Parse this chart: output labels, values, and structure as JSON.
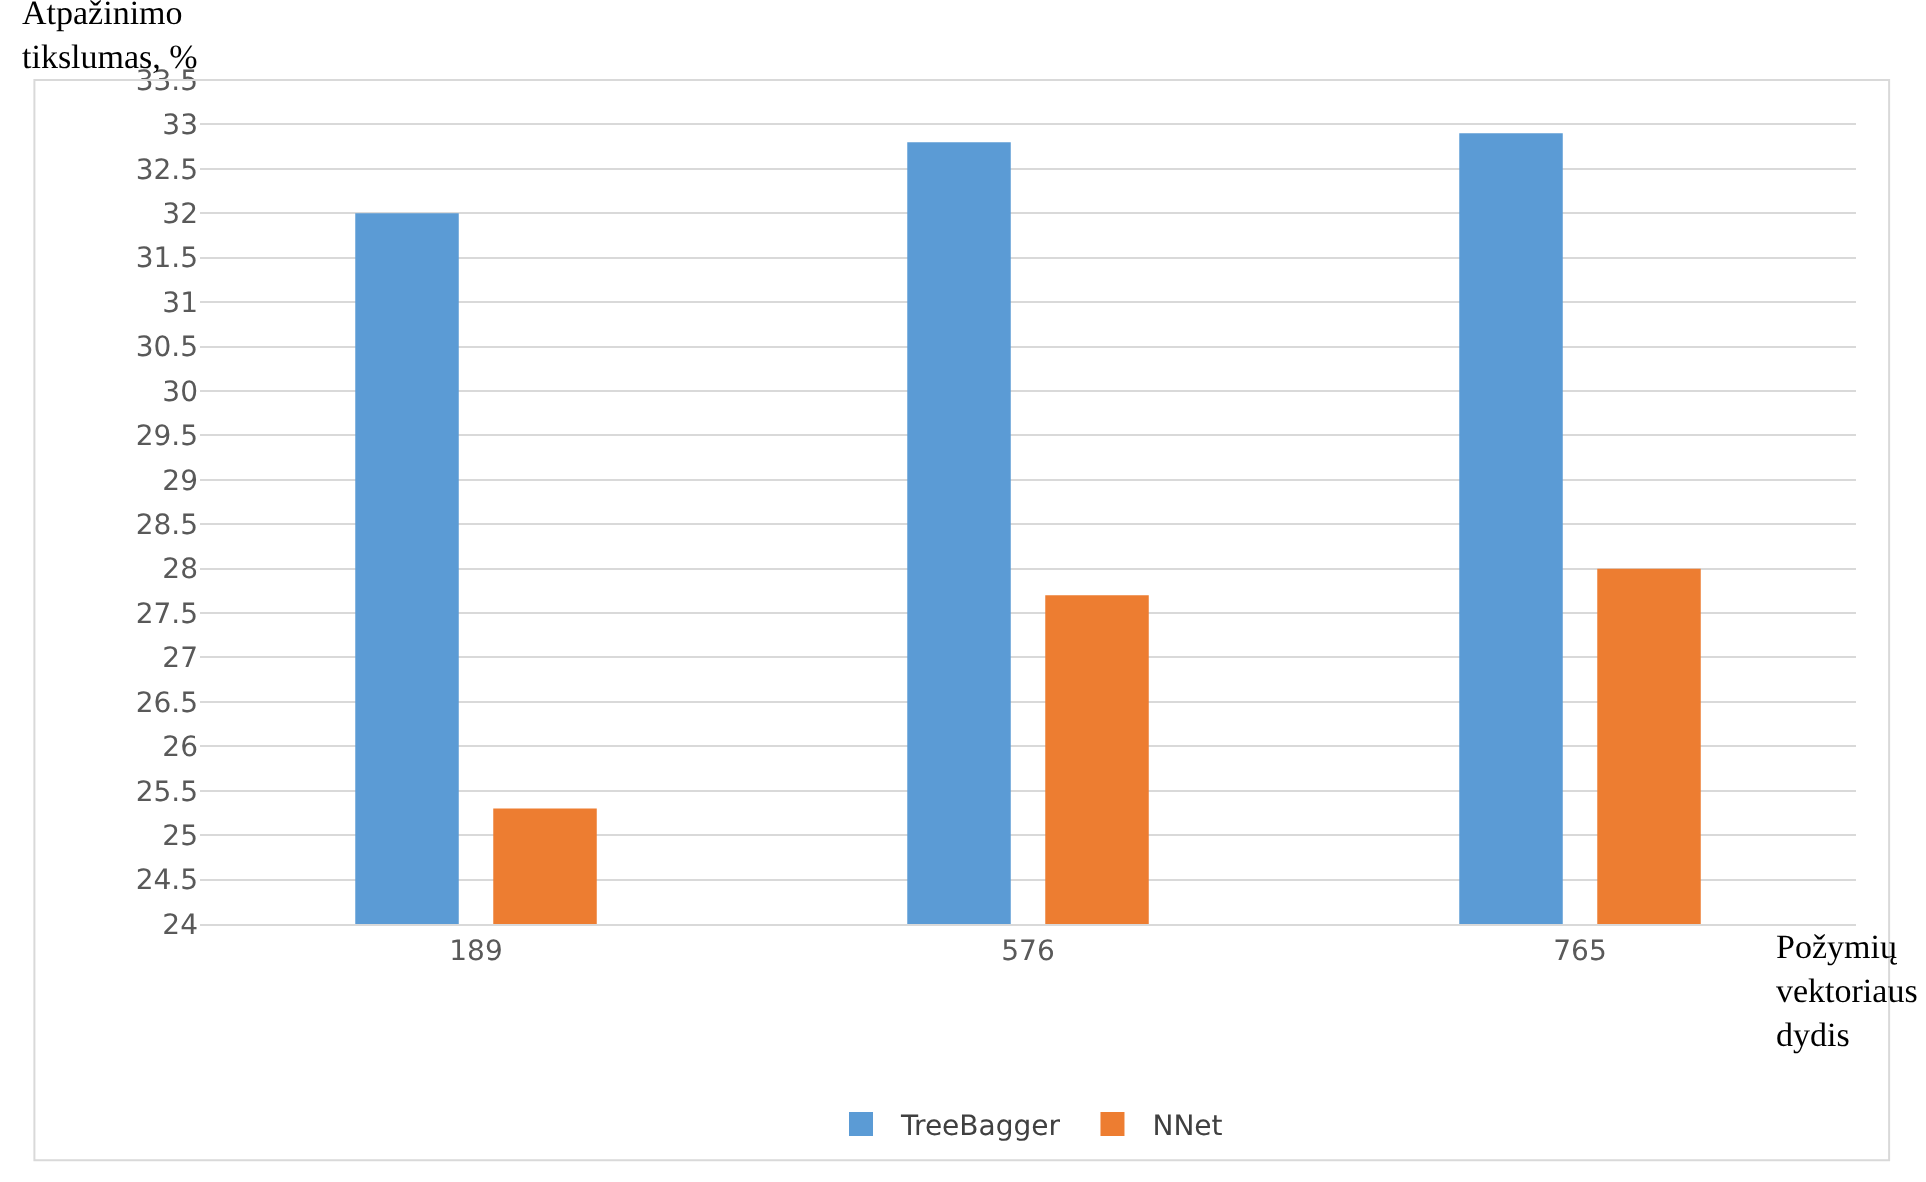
{
  "chart_data": {
    "type": "bar",
    "categories": [
      "189",
      "576",
      "765"
    ],
    "series": [
      {
        "name": "TreeBagger",
        "color": "#5b9bd5",
        "values": [
          32.0,
          32.8,
          32.9
        ]
      },
      {
        "name": "NNet",
        "color": "#ed7d31",
        "values": [
          25.3,
          27.7,
          28.0
        ]
      }
    ],
    "ylabel": "Atpažinimo\ntikslumas, %",
    "xlabel": "Požymių\nvektoriaus\ndydis",
    "ylim": [
      24,
      33.5
    ],
    "yticks": [
      24,
      24.5,
      25,
      25.5,
      26,
      26.5,
      27,
      27.5,
      28,
      28.5,
      29,
      29.5,
      30,
      30.5,
      31,
      31.5,
      32,
      32.5,
      33,
      33.5
    ],
    "grid": "y",
    "legend": "bottom"
  }
}
